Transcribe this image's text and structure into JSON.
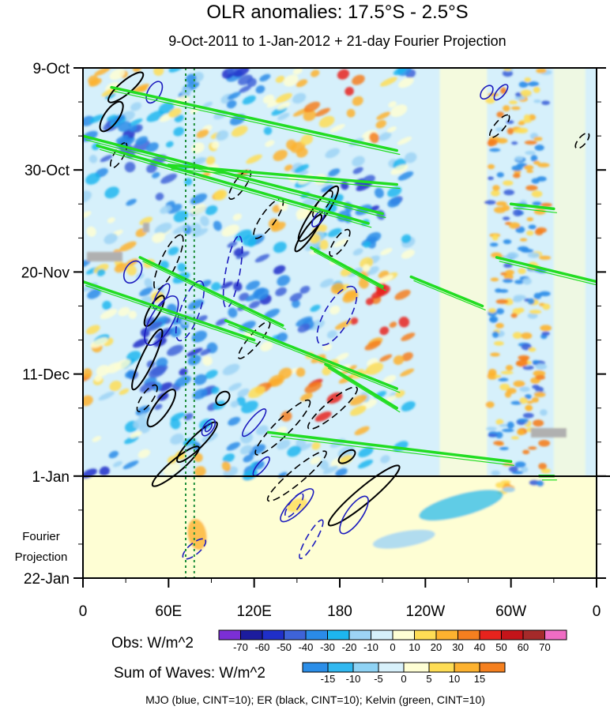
{
  "chart_data": {
    "type": "heatmap",
    "title": "OLR anomalies: 17.5°S - 2.5°S",
    "subtitle": "9-Oct-2011 to 1-Jan-2012 + 21-day Fourier Projection",
    "x_ticks": [
      "0",
      "60E",
      "120E",
      "180",
      "120W",
      "60W",
      "0"
    ],
    "x_tick_lon": [
      0,
      60,
      120,
      180,
      240,
      300,
      360
    ],
    "y_ticks": [
      "9-Oct",
      "30-Oct",
      "20-Nov",
      "11-Dec",
      "1-Jan",
      "22-Jan"
    ],
    "y_tick_day": [
      0,
      21,
      42,
      63,
      84,
      105
    ],
    "xlim": [
      0,
      360
    ],
    "ylim_days": [
      0,
      105
    ],
    "forecast_start_day": 84,
    "forecast_label": [
      "Fourier",
      "Projection"
    ],
    "obs_colorbar": {
      "label": "Obs: W/m^2",
      "levels": [
        "-70",
        "-60",
        "-50",
        "-40",
        "-30",
        "-20",
        "-10",
        "0",
        "10",
        "20",
        "30",
        "40",
        "50",
        "60",
        "70"
      ],
      "colors": [
        "#7b2fd6",
        "#1c1c9e",
        "#1f2fc9",
        "#3e63d8",
        "#2a8be8",
        "#1db6ee",
        "#9dd3f5",
        "#d6f0fb",
        "#fefed4",
        "#fedd55",
        "#fdb22f",
        "#f57f1f",
        "#e8231d",
        "#c4141a",
        "#a52a2a",
        "#f06cc4"
      ]
    },
    "waves_colorbar": {
      "label": "Sum of Waves: W/m^2",
      "levels": [
        "-15",
        "-10",
        "-5",
        "0",
        "5",
        "10",
        "15"
      ],
      "colors": [
        "#2b8ee8",
        "#31b8f0",
        "#8fd3f5",
        "#d8f1fb",
        "#fefed4",
        "#fedd55",
        "#fdb22f",
        "#f5801f"
      ]
    },
    "contour_legend": "MJO (blue, CINT=10); ER (black, CINT=10); Kelvin (green, CINT=10)",
    "series": [
      {
        "name": "MJO",
        "color": "#1c1cbe"
      },
      {
        "name": "ER",
        "color": "#000000"
      },
      {
        "name": "Kelvin",
        "color": "#22dd22"
      }
    ]
  }
}
